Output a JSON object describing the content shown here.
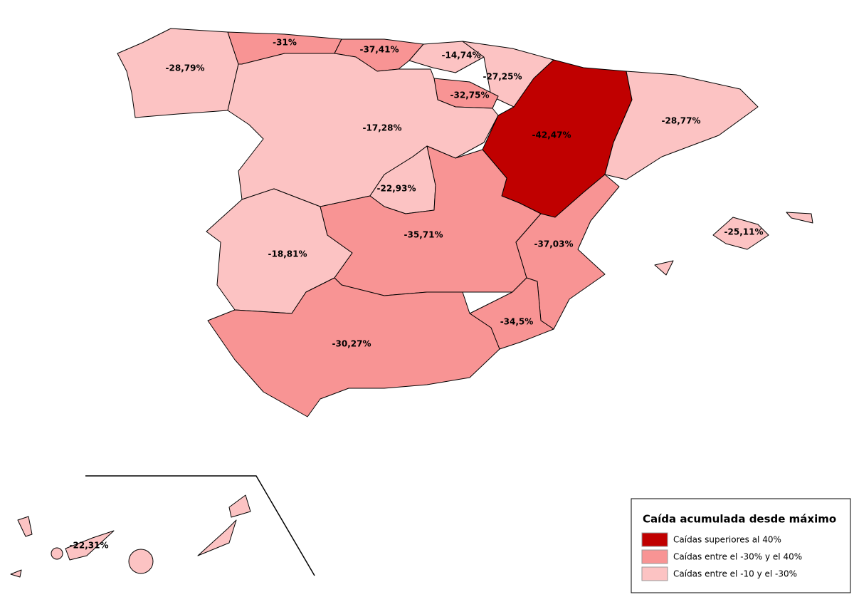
{
  "regions": [
    {
      "label": "-28,79%",
      "color": "#fcc3c3"
    },
    {
      "label": "-31%",
      "color": "#f89494"
    },
    {
      "label": "-37,41%",
      "color": "#f89494"
    },
    {
      "label": "-14,74%",
      "color": "#fcc3c3"
    },
    {
      "label": "-27,25%",
      "color": "#fcc3c3"
    },
    {
      "label": "-32,75%",
      "color": "#f89494"
    },
    {
      "label": "-17,28%",
      "color": "#fcc3c3"
    },
    {
      "label": "-22,93%",
      "color": "#fcc3c3"
    },
    {
      "label": "-42,47%",
      "color": "#c00000"
    },
    {
      "label": "-28,77%",
      "color": "#fcc3c3"
    },
    {
      "label": "-18,81%",
      "color": "#fcc3c3"
    },
    {
      "label": "-35,71%",
      "color": "#f89494"
    },
    {
      "label": "-37,03%",
      "color": "#f89494"
    },
    {
      "label": "-34,5%",
      "color": "#f89494"
    },
    {
      "label": "-30,27%",
      "color": "#f89494"
    },
    {
      "label": "-25,11%",
      "color": "#fcc3c3"
    },
    {
      "label": "-22,31%",
      "color": "#fcc3c3"
    }
  ],
  "legend": {
    "title": "Caída acumulada desde máximo",
    "items": [
      {
        "label": "Caídas superiores al 40%",
        "color": "#c00000"
      },
      {
        "label": "Caídas entre el -30% y el 40%",
        "color": "#f89494"
      },
      {
        "label": "Caídas entre el -10 y el -30%",
        "color": "#fcc3c3"
      }
    ]
  }
}
